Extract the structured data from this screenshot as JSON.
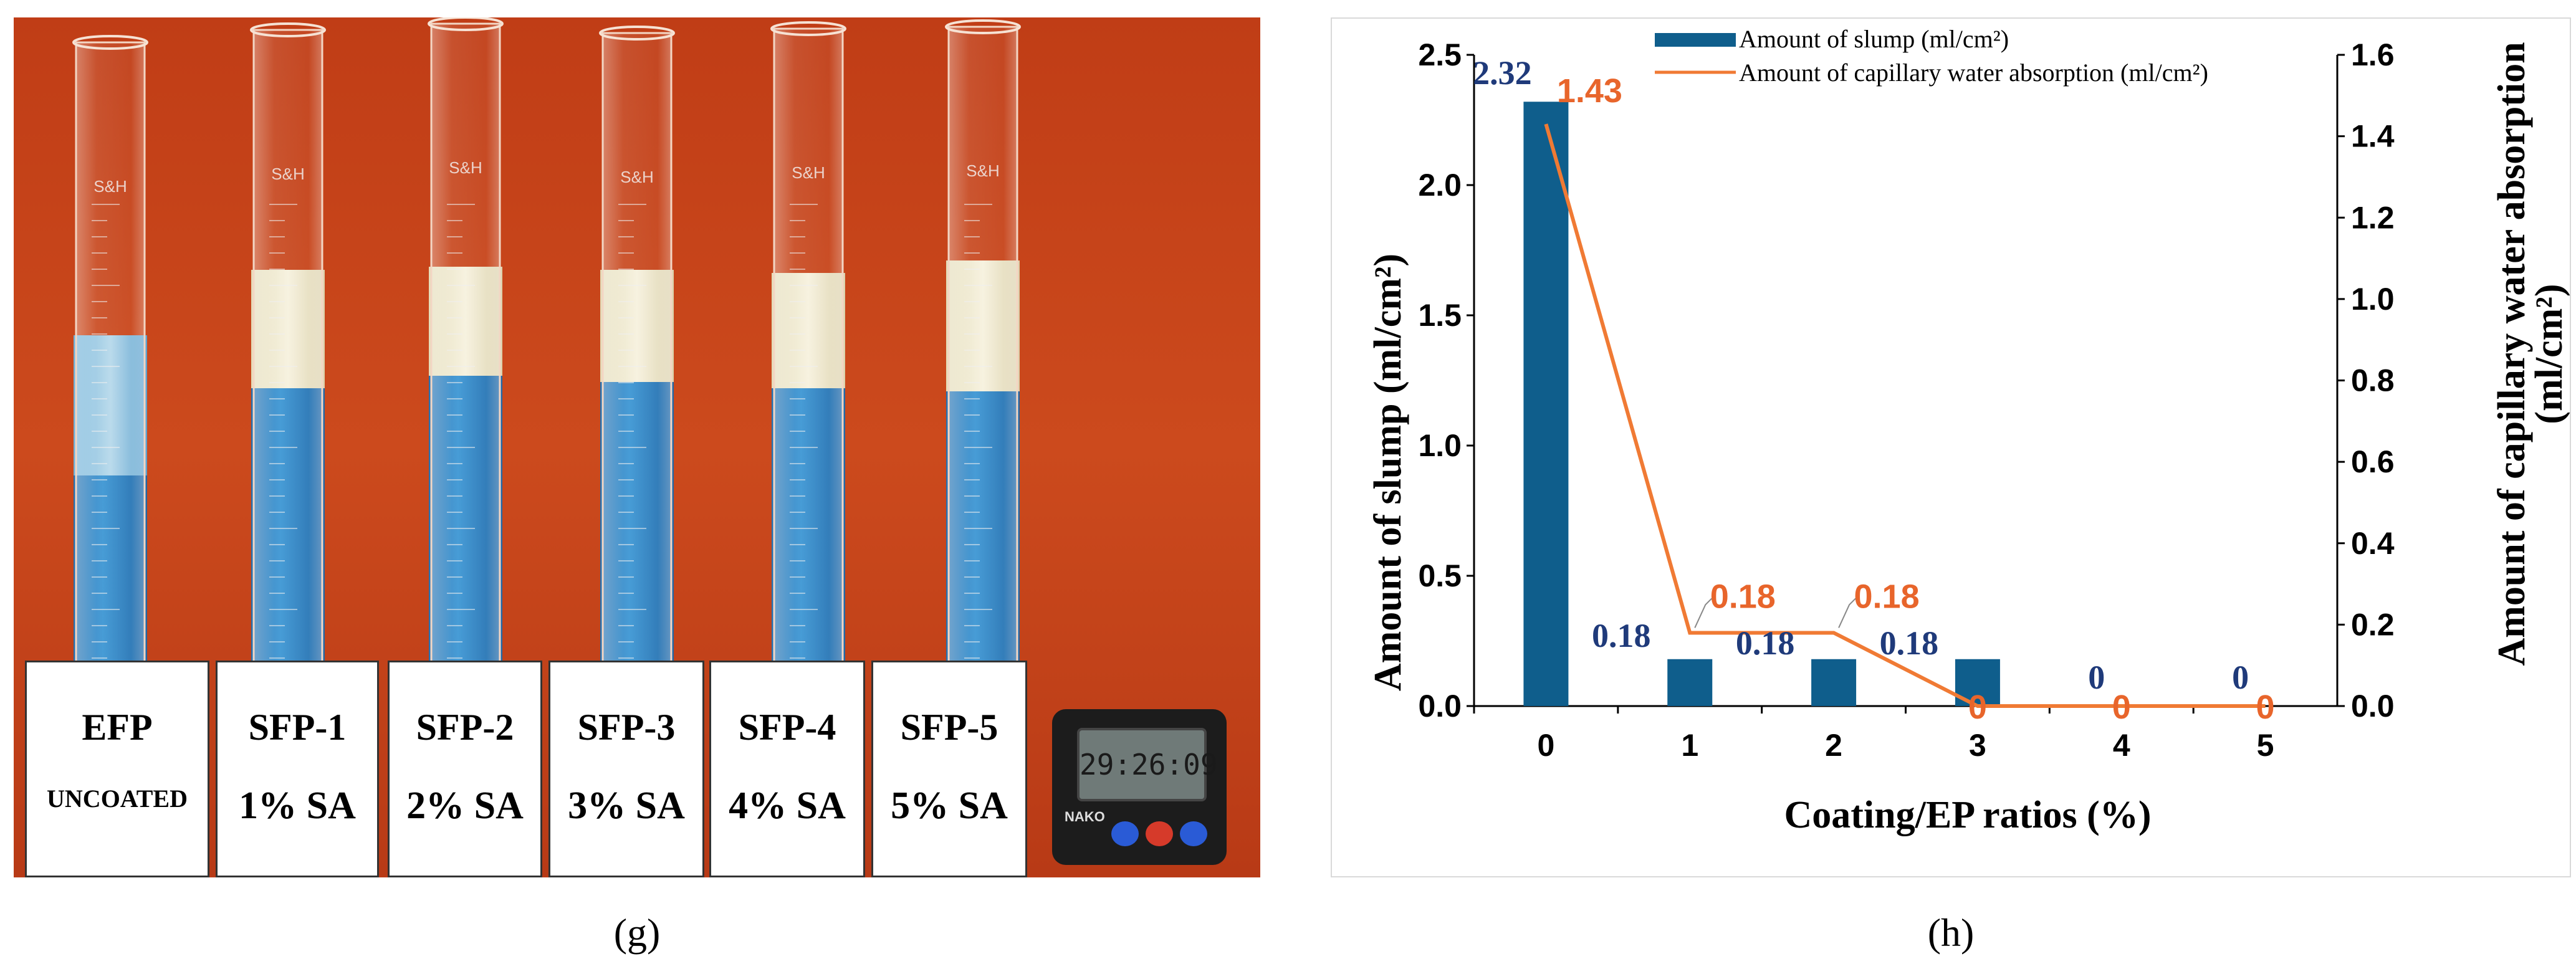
{
  "panels": {
    "left_letter": "(g)",
    "right_letter": "(h)"
  },
  "photo": {
    "cylinder_brand": "S&H",
    "cards": [
      {
        "name": "EFP",
        "sub": "UNCOATED"
      },
      {
        "name": "SFP-1",
        "sub": "1% SA"
      },
      {
        "name": "SFP-2",
        "sub": "2% SA"
      },
      {
        "name": "SFP-3",
        "sub": "3% SA"
      },
      {
        "name": "SFP-4",
        "sub": "4% SA"
      },
      {
        "name": "SFP-5",
        "sub": "5% SA"
      }
    ],
    "timer_display": "29:26:09",
    "timer_brand": "NAKO",
    "colors": {
      "background": "#c8461c",
      "water": "#2f86c6",
      "foam": "#efe9cf"
    }
  },
  "chart_data": {
    "type": "bar+line",
    "categories": [
      "0",
      "1",
      "2",
      "3",
      "4",
      "5"
    ],
    "xlabel": "Coating/EP ratios (%)",
    "ylabel": "Amount of slump (ml/cm²)",
    "y2label_line1": "Amount of capillary water absorption",
    "y2label_line2": "(ml/cm²)",
    "ylim": [
      0,
      2.5
    ],
    "y2lim": [
      0,
      1.6
    ],
    "yticks": [
      "0.0",
      "0.5",
      "1.0",
      "1.5",
      "2.0",
      "2.5"
    ],
    "y2ticks": [
      "0.0",
      "0.2",
      "0.4",
      "0.6",
      "0.8",
      "1.0",
      "1.2",
      "1.4",
      "1.6"
    ],
    "series": [
      {
        "name": "Amount of slump (ml/cm²)",
        "type": "bar",
        "axis": "left",
        "values": [
          2.32,
          0.18,
          0.18,
          0.18,
          0,
          0
        ],
        "labels": [
          "2.32",
          "0.18",
          "0.18",
          "0.18",
          "0",
          "0"
        ],
        "color": "#0f5e8c"
      },
      {
        "name": "Amount of capillary water absorption (ml/cm²)",
        "type": "line",
        "axis": "right",
        "values": [
          1.43,
          0.18,
          0.18,
          0,
          0,
          0
        ],
        "labels": [
          "1.43",
          "0.18",
          "0.18",
          "0",
          "0",
          "0"
        ],
        "color": "#f07a34"
      }
    ],
    "legend_position": "top",
    "grid": false
  }
}
